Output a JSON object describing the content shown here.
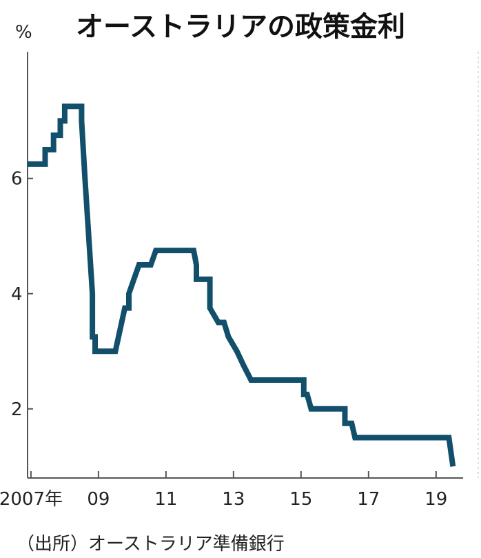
{
  "title": "オーストラリアの政策金利",
  "source": "（出所）オーストラリア準備銀行",
  "chart_data": {
    "type": "line",
    "ylabel": "%",
    "ylim": [
      0.8,
      8.2
    ],
    "yticks": [
      2,
      4,
      6
    ],
    "xlim": [
      2006.9,
      2019.8
    ],
    "xticks": [
      {
        "value": 2007,
        "label": "2007年"
      },
      {
        "value": 2009,
        "label": "09"
      },
      {
        "value": 2011,
        "label": "11"
      },
      {
        "value": 2013,
        "label": "13"
      },
      {
        "value": 2015,
        "label": "15"
      },
      {
        "value": 2017,
        "label": "17"
      },
      {
        "value": 2019,
        "label": "19"
      }
    ],
    "grid": false,
    "line_color": "#114f6b",
    "series": [
      {
        "x": [
          2006.9,
          2007.42,
          2007.42,
          2007.67,
          2007.67,
          2007.87,
          2007.87,
          2008.0,
          2008.0,
          2008.12,
          2008.12,
          2008.5,
          2008.5,
          2008.6,
          2008.82,
          2008.82,
          2008.9,
          2008.9,
          2009.0,
          2009.0,
          2009.5,
          2009.78,
          2009.78,
          2009.9,
          2009.9,
          2010.05,
          2010.05,
          2010.2,
          2010.2,
          2010.55,
          2010.55,
          2010.7,
          2010.7,
          2011.82,
          2011.9,
          2011.9,
          2012.12,
          2012.12,
          2012.3,
          2012.3,
          2012.55,
          2012.55,
          2012.72,
          2012.72,
          2012.85,
          2012.85,
          2013.1,
          2013.1,
          2013.3,
          2013.3,
          2013.52,
          2013.52,
          2015.08,
          2015.08,
          2015.18,
          2015.18,
          2015.3,
          2015.3,
          2016.3,
          2016.3,
          2016.5,
          2016.5,
          2016.6,
          2016.6,
          2019.38,
          2019.5
        ],
        "y": [
          6.25,
          6.25,
          6.5,
          6.5,
          6.75,
          6.75,
          7.0,
          7.0,
          7.25,
          7.25,
          7.25,
          7.25,
          7.0,
          6.0,
          4.0,
          3.25,
          3.25,
          3.0,
          3.0,
          3.0,
          3.0,
          3.75,
          3.75,
          3.75,
          4.0,
          4.25,
          4.25,
          4.5,
          4.5,
          4.5,
          4.5,
          4.75,
          4.75,
          4.75,
          4.5,
          4.25,
          4.25,
          4.25,
          4.25,
          3.75,
          3.5,
          3.5,
          3.5,
          3.5,
          3.25,
          3.25,
          3.0,
          3.0,
          2.75,
          2.75,
          2.5,
          2.5,
          2.5,
          2.25,
          2.25,
          2.25,
          2.0,
          2.0,
          2.0,
          1.75,
          1.75,
          1.75,
          1.5,
          1.5,
          1.5,
          1.0
        ]
      }
    ]
  }
}
